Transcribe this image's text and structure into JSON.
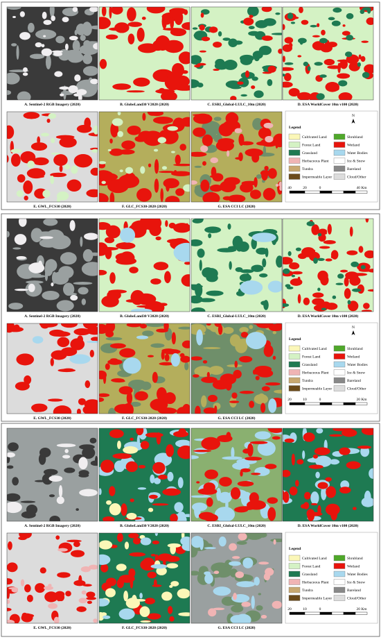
{
  "panels": [
    {
      "captions": [
        "A. Sentinel-2 RGB Imagery (2020)",
        "B. GlobeLand30 V2020 (2020)",
        "C. ESRI_Global-LULC_10m (2020)",
        "D. ESA WorldCover 10m v100 (2020)",
        "E. GWL_FCS30 (2020)",
        "F. GLC_FCS30-2020 (2020)",
        "G. ESA CCI LC (2020)"
      ],
      "north": "N",
      "scale": [
        "40",
        "20",
        "0",
        "40 Km"
      ]
    },
    {
      "captions": [
        "A. Sentinel-2 RGB Imagery (2020)",
        "B. GlobeLand30 V2020 (2020)",
        "C. ESRI_Global-LULC_10m (2020)",
        "D. ESA WorldCover 10m v100 (2020)",
        "E. GWL_FCS30 (2020)",
        "F. GLC_FCS30-2020 (2020)",
        "G. ESA CCI LC (2020)"
      ],
      "north": "N",
      "scale": [
        "20",
        "10",
        "0",
        "20 Km"
      ]
    },
    {
      "captions": [
        "A. Sentinel-2 RGB Imagery (2020)",
        "B. GlobeLand30 V2020 (2020)",
        "C. ESRI_Global-LULC_10m (2020)",
        "D. ESA WorldCover 10m v100 (2020)",
        "E. GWL_FCS30 (2020)",
        "F. GLC_FCS30-2020 (2020)",
        "G. ESA CCI LC (2020)"
      ],
      "scale": [
        "20",
        "10",
        "0",
        "20 Km"
      ]
    }
  ],
  "legend": {
    "title": "Legend",
    "items": [
      {
        "label": "Cultivated Land",
        "color": "#fbf7b8"
      },
      {
        "label": "Shrubland",
        "color": "#4fa82a"
      },
      {
        "label": "Forest Land",
        "color": "#d4f2c4"
      },
      {
        "label": "Wetland",
        "color": "#e8140c"
      },
      {
        "label": "Grassland",
        "color": "#1e7a52"
      },
      {
        "label": "Water Bodies",
        "color": "#a8d8ee"
      },
      {
        "label": "Herbaceous Plant",
        "color": "#f0b4b4"
      },
      {
        "label": "Ice & Snow",
        "color": "#ffffff"
      },
      {
        "label": "Tundra",
        "color": "#c8a870"
      },
      {
        "label": "Bareland",
        "color": "#888888"
      },
      {
        "label": "Impermeable Layer",
        "color": "#6b4a1a"
      },
      {
        "label": "Cloud/Other",
        "color": "#dddddd"
      }
    ]
  }
}
